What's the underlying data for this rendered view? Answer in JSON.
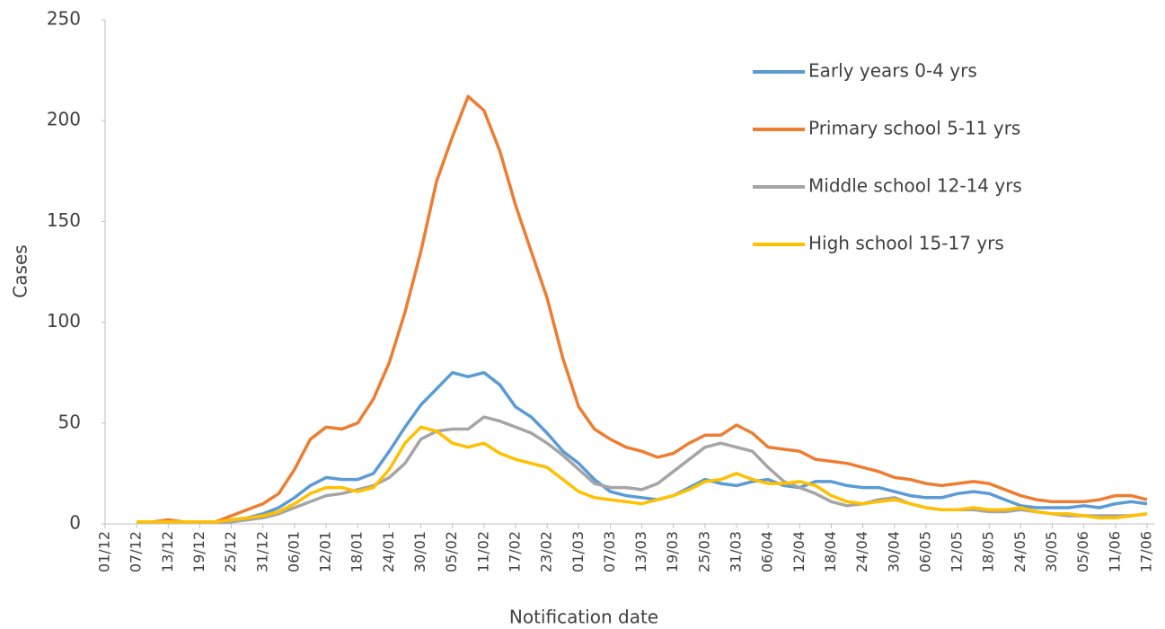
{
  "chart_data": {
    "type": "line",
    "x_label": "Notification date",
    "y_label": "Cases",
    "categories": [
      "01/12",
      null,
      "07/12",
      null,
      "13/12",
      null,
      "19/12",
      null,
      "25/12",
      null,
      "31/12",
      null,
      "06/01",
      null,
      "12/01",
      null,
      "18/01",
      null,
      "24/01",
      null,
      "30/01",
      null,
      "05/02",
      null,
      "11/02",
      null,
      "17/02",
      null,
      "23/02",
      null,
      "01/03",
      null,
      "07/03",
      null,
      "13/03",
      null,
      "19/03",
      null,
      "25/03",
      null,
      "31/03",
      null,
      "06/04",
      null,
      "12/04",
      null,
      "18/04",
      null,
      "24/04",
      null,
      "30/04",
      null,
      "06/05",
      null,
      "12/05",
      null,
      "18/05",
      null,
      "24/05",
      null,
      "30/05",
      null,
      "05/06",
      null,
      "11/06",
      null,
      "17/06"
    ],
    "series": [
      {
        "name": "Early years 0-4 yrs",
        "color": "#5b9bd5",
        "values": [
          null,
          null,
          1,
          1,
          1,
          1,
          1,
          1,
          2,
          3,
          5,
          8,
          13,
          19,
          23,
          22,
          22,
          25,
          36,
          48,
          59,
          67,
          75,
          73,
          75,
          69,
          58,
          53,
          45,
          36,
          30,
          22,
          16,
          14,
          13,
          12,
          14,
          18,
          22,
          20,
          19,
          21,
          22,
          19,
          18,
          21,
          21,
          19,
          18,
          18,
          16,
          14,
          13,
          13,
          15,
          16,
          15,
          12,
          9,
          8,
          8,
          8,
          9,
          8,
          10,
          11,
          10
        ]
      },
      {
        "name": "Primary school 5-11 yrs",
        "color": "#ed7d31",
        "values": [
          null,
          null,
          1,
          1,
          2,
          1,
          1,
          1,
          4,
          7,
          10,
          15,
          27,
          42,
          48,
          47,
          50,
          62,
          80,
          105,
          135,
          170,
          192,
          212,
          205,
          185,
          158,
          135,
          112,
          82,
          58,
          47,
          42,
          38,
          36,
          33,
          35,
          40,
          44,
          44,
          49,
          45,
          38,
          37,
          36,
          32,
          31,
          30,
          28,
          26,
          23,
          22,
          20,
          19,
          20,
          21,
          20,
          17,
          14,
          12,
          11,
          11,
          11,
          12,
          14,
          14,
          12
        ]
      },
      {
        "name": "Middle school 12-14 yrs",
        "color": "#a5a5a5",
        "values": [
          null,
          null,
          1,
          1,
          1,
          1,
          1,
          1,
          1,
          2,
          3,
          5,
          8,
          11,
          14,
          15,
          17,
          19,
          23,
          30,
          42,
          46,
          47,
          47,
          53,
          51,
          48,
          45,
          40,
          34,
          27,
          20,
          18,
          18,
          17,
          20,
          26,
          32,
          38,
          40,
          38,
          36,
          28,
          21,
          18,
          15,
          11,
          9,
          10,
          12,
          13,
          10,
          8,
          7,
          7,
          7,
          6,
          6,
          7,
          6,
          5,
          4,
          4,
          4,
          4,
          4,
          5
        ]
      },
      {
        "name": "High school 15-17 yrs",
        "color": "#ffc000",
        "values": [
          null,
          null,
          1,
          1,
          1,
          1,
          1,
          1,
          2,
          3,
          4,
          6,
          10,
          15,
          18,
          18,
          16,
          18,
          27,
          40,
          48,
          46,
          40,
          38,
          40,
          35,
          32,
          30,
          28,
          22,
          16,
          13,
          12,
          11,
          10,
          12,
          14,
          17,
          21,
          22,
          25,
          22,
          20,
          20,
          21,
          19,
          14,
          11,
          10,
          11,
          12,
          10,
          8,
          7,
          7,
          8,
          7,
          7,
          8,
          6,
          5,
          5,
          4,
          3,
          3,
          4,
          5
        ]
      }
    ],
    "ylim": [
      0,
      250
    ],
    "yticks": [
      0,
      50,
      100,
      150,
      200,
      250
    ],
    "grid": false,
    "legend": "upper right"
  }
}
